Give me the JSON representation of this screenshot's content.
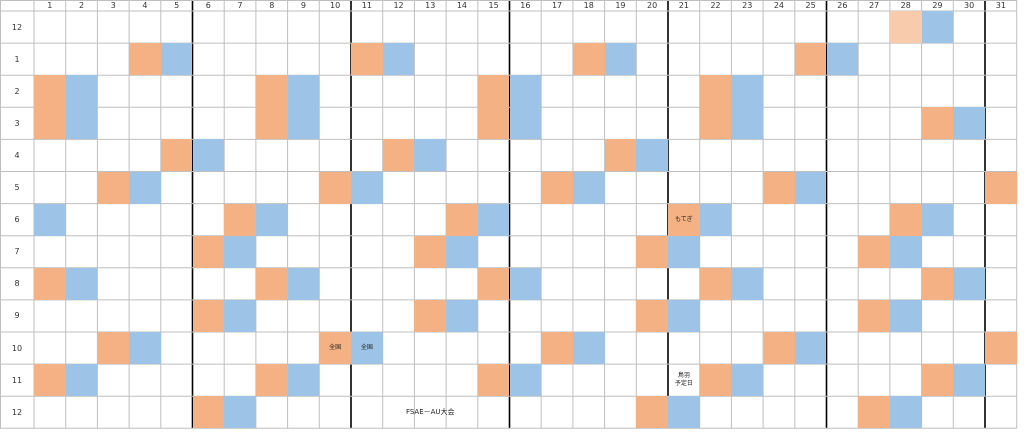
{
  "columns": [
    "1",
    "2",
    "3",
    "4",
    "5",
    "6",
    "7",
    "8",
    "9",
    "10",
    "11",
    "12",
    "13",
    "14",
    "15",
    "16",
    "17",
    "18",
    "19",
    "20",
    "21",
    "22",
    "23",
    "24",
    "25",
    "26",
    "27",
    "28",
    "29",
    "30",
    "31"
  ],
  "colors": {
    "orange": "#f4b183",
    "blue": "#9dc3e6",
    "peach": "#f8cbad",
    "grid": "#bfbfbf",
    "bold": "#000000"
  },
  "rows": [
    {
      "label": "12",
      "cells": [
        {
          "day": 28,
          "color": "peach"
        },
        {
          "day": 29,
          "color": "blue"
        }
      ]
    },
    {
      "label": "1",
      "cells": [
        {
          "day": 4,
          "color": "orange"
        },
        {
          "day": 5,
          "color": "blue"
        },
        {
          "day": 11,
          "color": "orange"
        },
        {
          "day": 12,
          "color": "blue"
        },
        {
          "day": 18,
          "color": "orange"
        },
        {
          "day": 19,
          "color": "blue"
        },
        {
          "day": 25,
          "color": "orange"
        },
        {
          "day": 26,
          "color": "blue"
        }
      ]
    },
    {
      "label": "2",
      "cells": [
        {
          "day": 1,
          "color": "orange"
        },
        {
          "day": 2,
          "color": "blue"
        },
        {
          "day": 8,
          "color": "orange"
        },
        {
          "day": 9,
          "color": "blue"
        },
        {
          "day": 15,
          "color": "orange"
        },
        {
          "day": 16,
          "color": "blue"
        },
        {
          "day": 22,
          "color": "orange"
        },
        {
          "day": 23,
          "color": "blue"
        }
      ]
    },
    {
      "label": "3",
      "cells": [
        {
          "day": 1,
          "color": "orange"
        },
        {
          "day": 2,
          "color": "blue"
        },
        {
          "day": 8,
          "color": "orange"
        },
        {
          "day": 9,
          "color": "blue"
        },
        {
          "day": 15,
          "color": "orange"
        },
        {
          "day": 16,
          "color": "blue"
        },
        {
          "day": 22,
          "color": "orange"
        },
        {
          "day": 23,
          "color": "blue"
        },
        {
          "day": 29,
          "color": "orange"
        },
        {
          "day": 30,
          "color": "blue"
        }
      ]
    },
    {
      "label": "4",
      "cells": [
        {
          "day": 5,
          "color": "orange"
        },
        {
          "day": 6,
          "color": "blue"
        },
        {
          "day": 12,
          "color": "orange"
        },
        {
          "day": 13,
          "color": "blue"
        },
        {
          "day": 19,
          "color": "orange"
        },
        {
          "day": 20,
          "color": "blue"
        }
      ]
    },
    {
      "label": "5",
      "cells": [
        {
          "day": 3,
          "color": "orange"
        },
        {
          "day": 4,
          "color": "blue"
        },
        {
          "day": 10,
          "color": "orange"
        },
        {
          "day": 11,
          "color": "blue"
        },
        {
          "day": 17,
          "color": "orange"
        },
        {
          "day": 18,
          "color": "blue"
        },
        {
          "day": 24,
          "color": "orange"
        },
        {
          "day": 25,
          "color": "blue"
        },
        {
          "day": 31,
          "color": "orange"
        }
      ]
    },
    {
      "label": "6",
      "cells": [
        {
          "day": 1,
          "color": "blue"
        },
        {
          "day": 7,
          "color": "orange"
        },
        {
          "day": 8,
          "color": "blue"
        },
        {
          "day": 14,
          "color": "orange"
        },
        {
          "day": 15,
          "color": "blue"
        },
        {
          "day": 21,
          "color": "orange",
          "text": "もてぎ"
        },
        {
          "day": 22,
          "color": "blue"
        },
        {
          "day": 28,
          "color": "orange"
        },
        {
          "day": 29,
          "color": "blue"
        }
      ]
    },
    {
      "label": "7",
      "cells": [
        {
          "day": 6,
          "color": "orange"
        },
        {
          "day": 7,
          "color": "blue"
        },
        {
          "day": 13,
          "color": "orange"
        },
        {
          "day": 14,
          "color": "blue"
        },
        {
          "day": 20,
          "color": "orange"
        },
        {
          "day": 21,
          "color": "blue"
        },
        {
          "day": 27,
          "color": "orange"
        },
        {
          "day": 28,
          "color": "blue"
        }
      ]
    },
    {
      "label": "8",
      "cells": [
        {
          "day": 1,
          "color": "orange"
        },
        {
          "day": 2,
          "color": "blue"
        },
        {
          "day": 8,
          "color": "orange"
        },
        {
          "day": 9,
          "color": "blue"
        },
        {
          "day": 15,
          "color": "orange"
        },
        {
          "day": 16,
          "color": "blue"
        },
        {
          "day": 22,
          "color": "orange"
        },
        {
          "day": 23,
          "color": "blue"
        },
        {
          "day": 29,
          "color": "orange"
        },
        {
          "day": 30,
          "color": "blue"
        }
      ]
    },
    {
      "label": "9",
      "cells": [
        {
          "day": 6,
          "color": "orange"
        },
        {
          "day": 7,
          "color": "blue"
        },
        {
          "day": 13,
          "color": "orange"
        },
        {
          "day": 14,
          "color": "blue"
        },
        {
          "day": 20,
          "color": "orange"
        },
        {
          "day": 21,
          "color": "blue"
        },
        {
          "day": 27,
          "color": "orange"
        },
        {
          "day": 28,
          "color": "blue"
        }
      ]
    },
    {
      "label": "10",
      "cells": [
        {
          "day": 3,
          "color": "orange"
        },
        {
          "day": 4,
          "color": "blue"
        },
        {
          "day": 10,
          "color": "orange",
          "text": "全国"
        },
        {
          "day": 11,
          "color": "blue",
          "text": "全国"
        },
        {
          "day": 17,
          "color": "orange"
        },
        {
          "day": 18,
          "color": "blue"
        },
        {
          "day": 24,
          "color": "orange"
        },
        {
          "day": 25,
          "color": "blue"
        },
        {
          "day": 31,
          "color": "orange"
        }
      ]
    },
    {
      "label": "11",
      "cells": [
        {
          "day": 1,
          "color": "orange"
        },
        {
          "day": 2,
          "color": "blue"
        },
        {
          "day": 8,
          "color": "orange"
        },
        {
          "day": 9,
          "color": "blue"
        },
        {
          "day": 15,
          "color": "orange"
        },
        {
          "day": 16,
          "color": "blue"
        },
        {
          "day": 21,
          "color": "none",
          "text": "鳥羽\n予定日"
        },
        {
          "day": 22,
          "color": "orange"
        },
        {
          "day": 23,
          "color": "blue"
        },
        {
          "day": 29,
          "color": "orange"
        },
        {
          "day": 30,
          "color": "blue"
        }
      ]
    },
    {
      "label": "12",
      "cells": [
        {
          "day": 6,
          "color": "orange"
        },
        {
          "day": 7,
          "color": "blue"
        },
        {
          "day": 20,
          "color": "orange"
        },
        {
          "day": 21,
          "color": "blue"
        },
        {
          "day": 27,
          "color": "orange"
        },
        {
          "day": 28,
          "color": "blue"
        }
      ]
    }
  ],
  "spanning_note": {
    "row": 12,
    "from_day": 11,
    "to_day": 15,
    "text": "FSAE－AU大会"
  },
  "bold_after_columns": [
    5,
    10,
    15,
    20,
    25,
    30
  ]
}
